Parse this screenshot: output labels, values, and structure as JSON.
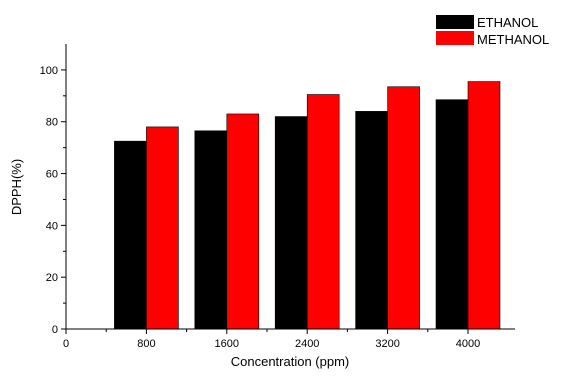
{
  "chart_data": {
    "type": "bar",
    "title": "",
    "xlabel": "Concentration (ppm)",
    "ylabel": "DPPH(%)",
    "categories": [
      "800",
      "1600",
      "2400",
      "3200",
      "4000"
    ],
    "x_tick_labels": [
      "0",
      "800",
      "1600",
      "2400",
      "3200",
      "4000"
    ],
    "y_tick_labels": [
      "0",
      "20",
      "40",
      "60",
      "80",
      "100"
    ],
    "ylim": [
      0,
      110
    ],
    "grid": false,
    "legend_position": "top-right outside plot",
    "series": [
      {
        "name": "ETHANOL",
        "color": "#000000",
        "values": [
          72.5,
          76.5,
          82,
          84,
          88.5
        ]
      },
      {
        "name": "METHANOL",
        "color": "#ff0000",
        "values": [
          78,
          83,
          90.5,
          93.5,
          95.5
        ]
      }
    ]
  }
}
